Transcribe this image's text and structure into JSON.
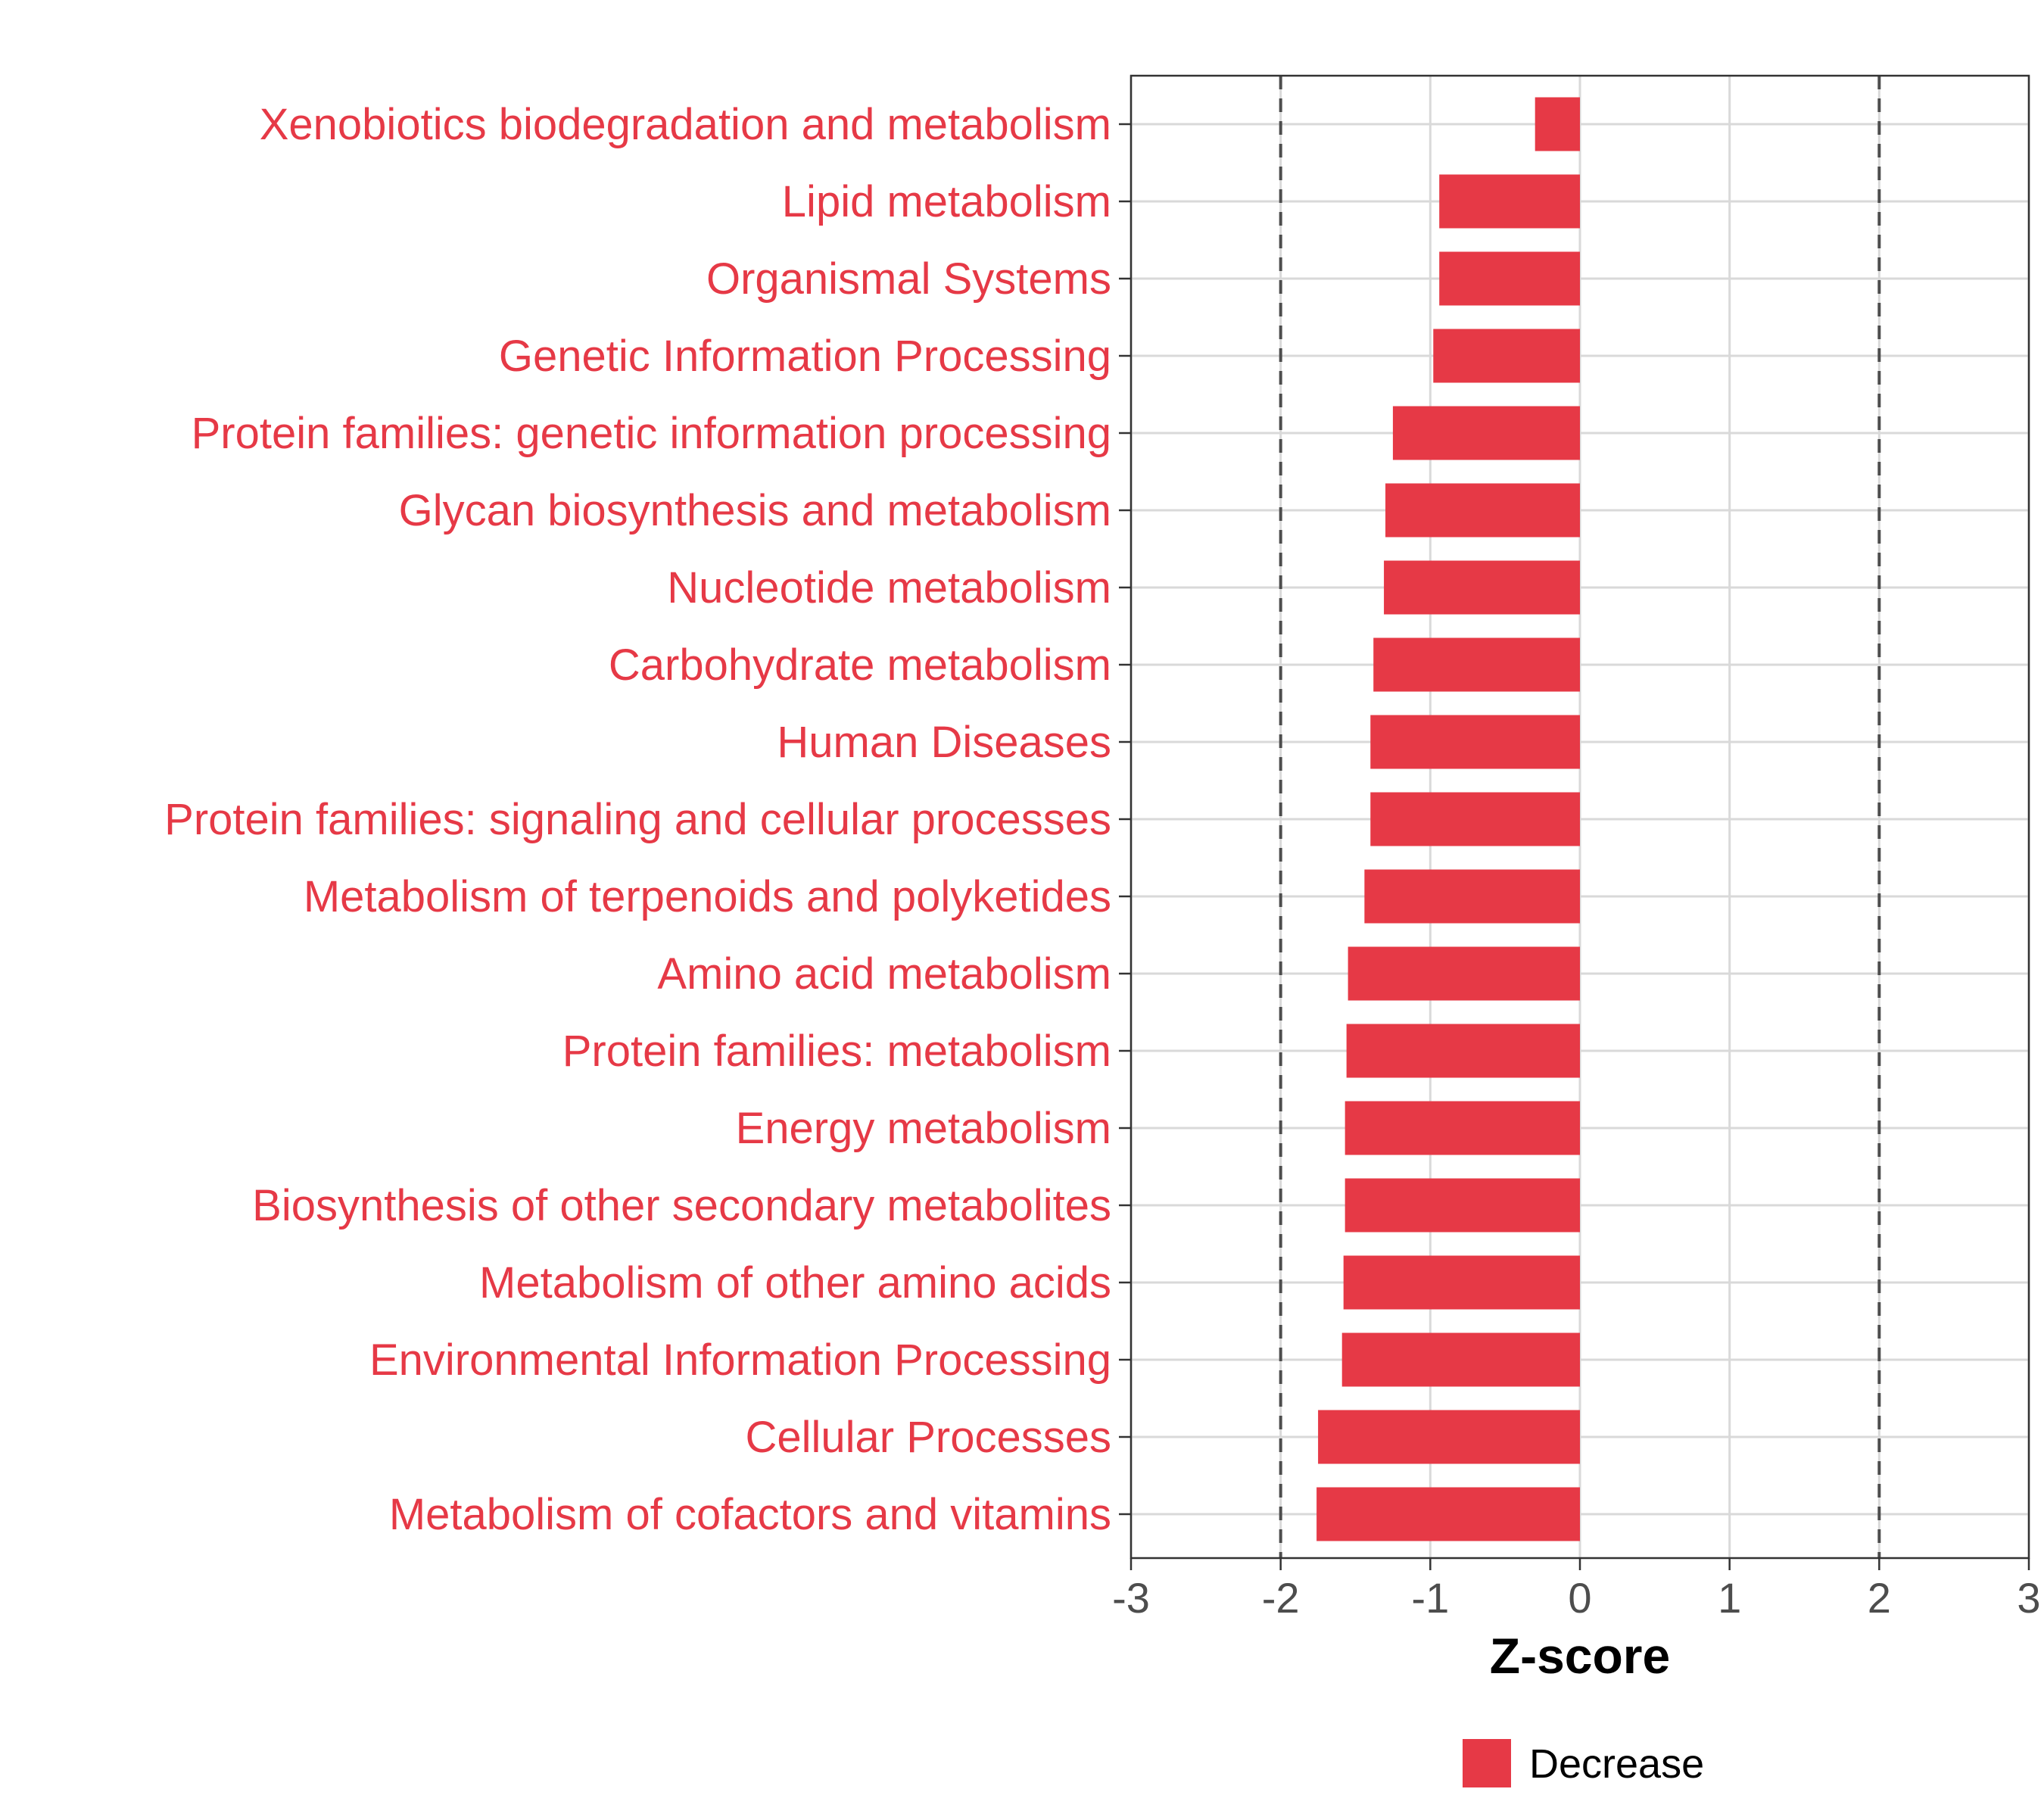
{
  "chart_data": {
    "type": "bar",
    "orientation": "horizontal",
    "categories": [
      "Xenobiotics biodegradation and metabolism",
      "Lipid metabolism",
      "Organismal Systems",
      "Genetic Information Processing",
      "Protein families: genetic information processing",
      "Glycan biosynthesis and metabolism",
      "Nucleotide metabolism",
      "Carbohydrate metabolism",
      "Human Diseases",
      "Protein families: signaling and cellular processes",
      "Metabolism of terpenoids and polyketides",
      "Amino acid metabolism",
      "Protein families: metabolism",
      "Energy metabolism",
      "Biosynthesis of other secondary metabolites",
      "Metabolism of other amino acids",
      "Environmental Information Processing",
      "Cellular Processes",
      "Metabolism of cofactors and vitamins"
    ],
    "values": [
      -0.3,
      -0.94,
      -0.94,
      -0.98,
      -1.25,
      -1.3,
      -1.31,
      -1.38,
      -1.4,
      -1.4,
      -1.44,
      -1.55,
      -1.56,
      -1.57,
      -1.57,
      -1.58,
      -1.59,
      -1.75,
      -1.76
    ],
    "series": [
      {
        "name": "Decrease",
        "color": "#e63946"
      }
    ],
    "xlabel": "Z-score",
    "xlim": [
      -3,
      3
    ],
    "xticks": [
      "-3",
      "-2",
      "-1",
      "0",
      "1",
      "2",
      "3"
    ],
    "reference_lines": [
      -2,
      2
    ],
    "grid": true,
    "legend_position": "bottom",
    "label_color": "#e63946"
  }
}
